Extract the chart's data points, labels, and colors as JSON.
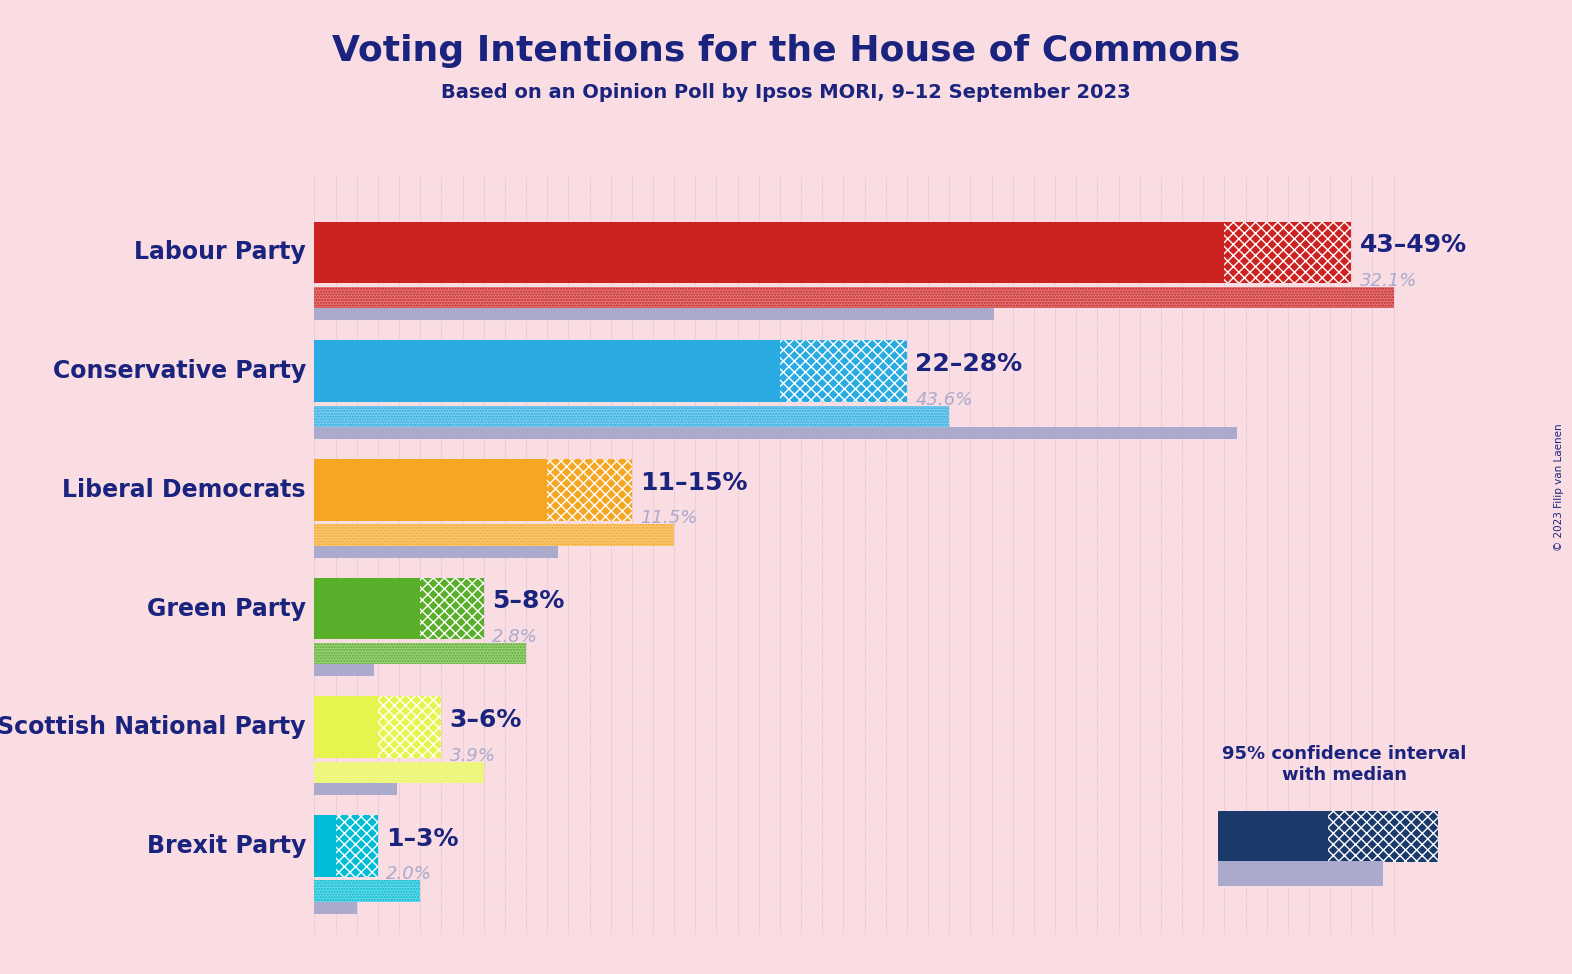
{
  "title": "Voting Intentions for the House of Commons",
  "subtitle": "Based on an Opinion Poll by Ipsos MORI, 9–12 September 2023",
  "copyright": "© 2023 Filip van Laenen",
  "background_color": "#f9dde2",
  "parties": [
    {
      "name": "Labour Party",
      "ci_low": 43,
      "ci_high": 49,
      "last_result": 32.1,
      "color": "#cc2222",
      "range_label": "43–49%",
      "result_label": "32.1%"
    },
    {
      "name": "Conservative Party",
      "ci_low": 22,
      "ci_high": 28,
      "last_result": 43.6,
      "color": "#29abe2",
      "range_label": "22–28%",
      "result_label": "43.6%"
    },
    {
      "name": "Liberal Democrats",
      "ci_low": 11,
      "ci_high": 15,
      "last_result": 11.5,
      "color": "#f5a623",
      "range_label": "11–15%",
      "result_label": "11.5%"
    },
    {
      "name": "Green Party",
      "ci_low": 5,
      "ci_high": 8,
      "last_result": 2.8,
      "color": "#5aaf2a",
      "range_label": "5–8%",
      "result_label": "2.8%"
    },
    {
      "name": "Scottish National Party",
      "ci_low": 3,
      "ci_high": 6,
      "last_result": 3.9,
      "color": "#e8f44e",
      "range_label": "3–6%",
      "result_label": "3.9%"
    },
    {
      "name": "Brexit Party",
      "ci_low": 1,
      "ci_high": 3,
      "last_result": 2.0,
      "color": "#00bcd4",
      "range_label": "1–3%",
      "result_label": "2.0%"
    }
  ],
  "xlim_max": 52,
  "dark_blue": "#1a237e",
  "gray_result": "#aaaacc",
  "legend_dark": "#1a3a6b"
}
